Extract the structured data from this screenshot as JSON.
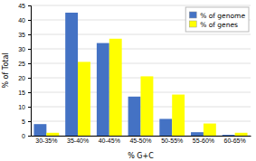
{
  "chart_data": {
    "type": "bar",
    "categories": [
      "30-35%",
      "35-40%",
      "40-45%",
      "45-50%",
      "50-55%",
      "55-60%",
      "60-65%"
    ],
    "series": [
      {
        "name": "% of genome",
        "color": "#4472C4",
        "values": [
          4.0,
          42.5,
          32.0,
          13.5,
          5.8,
          1.2,
          0.3
        ]
      },
      {
        "name": "% of genes",
        "color": "#FFFF00",
        "values": [
          1.0,
          25.5,
          33.5,
          20.5,
          14.2,
          4.2,
          1.0
        ]
      }
    ],
    "xlabel": "% G+C",
    "ylabel": "% of Total",
    "ylim": [
      0,
      45
    ],
    "yticks": [
      0,
      5,
      10,
      15,
      20,
      25,
      30,
      35,
      40,
      45
    ],
    "grid": true,
    "legend": "upper right"
  }
}
